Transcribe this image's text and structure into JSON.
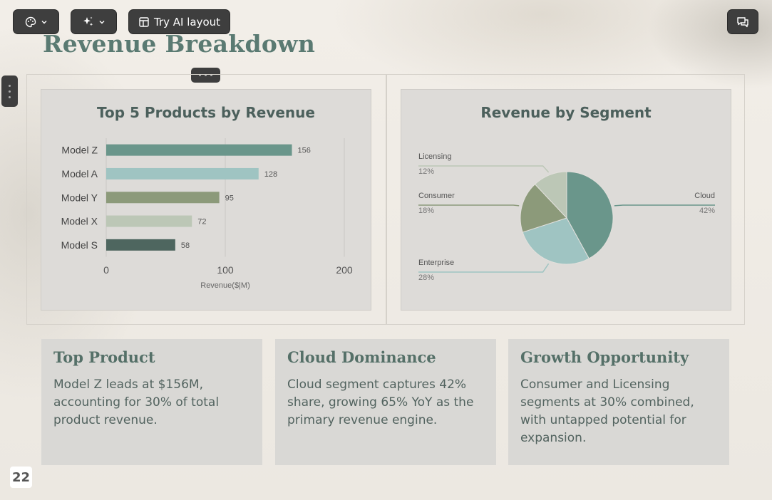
{
  "toolbar": {
    "theme_icon": "palette-icon",
    "ai_icon": "sparkles-icon",
    "layout_label": "Try AI layout",
    "layout_icon": "layout-icon",
    "comments_icon": "comments-icon"
  },
  "slide": {
    "title": "Revenue Breakdown",
    "page_number": "22"
  },
  "colors": {
    "teal": "#6a968b",
    "light_teal": "#9fc4c2",
    "olive": "#8c9a7a",
    "sage": "#bcc7b6",
    "dark": "#4e665f"
  },
  "chart_data": [
    {
      "type": "bar",
      "orientation": "horizontal",
      "title": "Top 5 Products by Revenue",
      "categories": [
        "Model Z",
        "Model A",
        "Model Y",
        "Model X",
        "Model S"
      ],
      "values": [
        156,
        128,
        95,
        72,
        58
      ],
      "data_labels": [
        "156",
        "128",
        "95",
        "72",
        "58"
      ],
      "colors": [
        "#6a968b",
        "#9fc4c2",
        "#8c9a7a",
        "#bcc7b6",
        "#4e665f"
      ],
      "xlabel": "Revenue($|M)",
      "xlim": [
        0,
        200
      ],
      "xticks": [
        "0",
        "100",
        "200"
      ],
      "grid": true
    },
    {
      "type": "pie",
      "title": "Revenue by Segment",
      "slices": [
        {
          "label": "Cloud",
          "pct_label": "42%",
          "value": 42,
          "color": "#6a968b"
        },
        {
          "label": "Enterprise",
          "pct_label": "28%",
          "value": 28,
          "color": "#9fc4c2"
        },
        {
          "label": "Consumer",
          "pct_label": "18%",
          "value": 18,
          "color": "#8c9a7a"
        },
        {
          "label": "Licensing",
          "pct_label": "12%",
          "value": 12,
          "color": "#bcc7b6"
        }
      ]
    }
  ],
  "cards": [
    {
      "title": "Top Product",
      "text": "Model Z leads at $156M, accounting for 30% of total product revenue."
    },
    {
      "title": "Cloud Dominance",
      "text": "Cloud segment captures 42% share, growing 65% YoY as the primary revenue engine."
    },
    {
      "title": "Growth Opportunity",
      "text": "Consumer and Licensing segments at 30% combined, with untapped potential for expansion."
    }
  ]
}
